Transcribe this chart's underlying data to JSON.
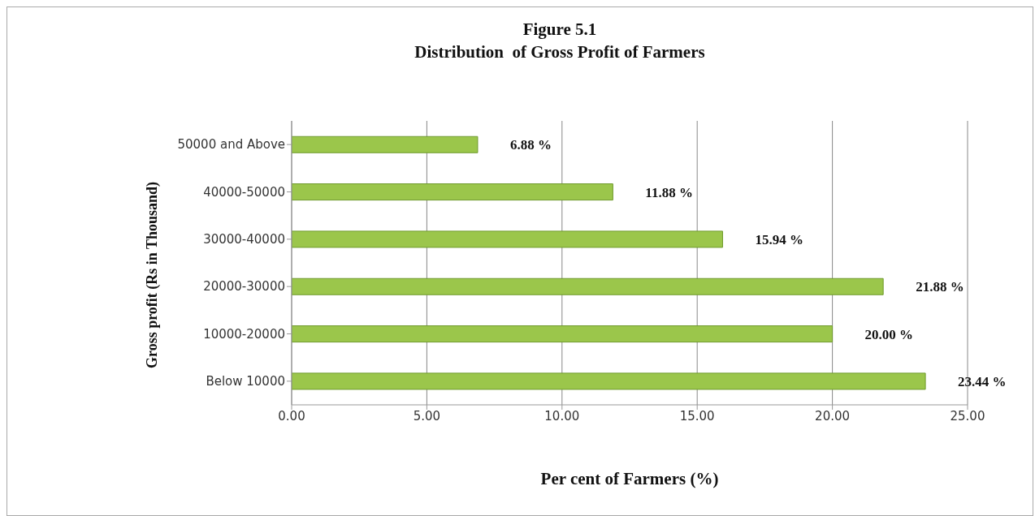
{
  "chart_data": {
    "type": "bar",
    "orientation": "horizontal",
    "title": "Figure 5.1",
    "subtitle": "Distribution  of Gross Profit of Farmers",
    "xlabel": "Per cent of Farmers (%)",
    "ylabel": "Gross profit (Rs in Thousand)",
    "categories": [
      "50000 and Above",
      "40000-50000",
      "30000-40000",
      "20000-30000",
      "10000-20000",
      "Below 10000"
    ],
    "values": [
      6.88,
      11.88,
      15.94,
      21.88,
      20.0,
      23.44
    ],
    "value_labels": [
      "6.88 %",
      "11.88 %",
      "15.94 %",
      "21.88 %",
      "20.00 %",
      "23.44 %"
    ],
    "color": "#9bc64b",
    "xlim": [
      0,
      25
    ],
    "xticks": [
      {
        "value": 0,
        "label": "0.00"
      },
      {
        "value": 5,
        "label": "5.00"
      },
      {
        "value": 10,
        "label": "10.00"
      },
      {
        "value": 15,
        "label": "15.00"
      },
      {
        "value": 20,
        "label": "20.00"
      },
      {
        "value": 25,
        "label": "25.00"
      }
    ],
    "grid": "x"
  }
}
